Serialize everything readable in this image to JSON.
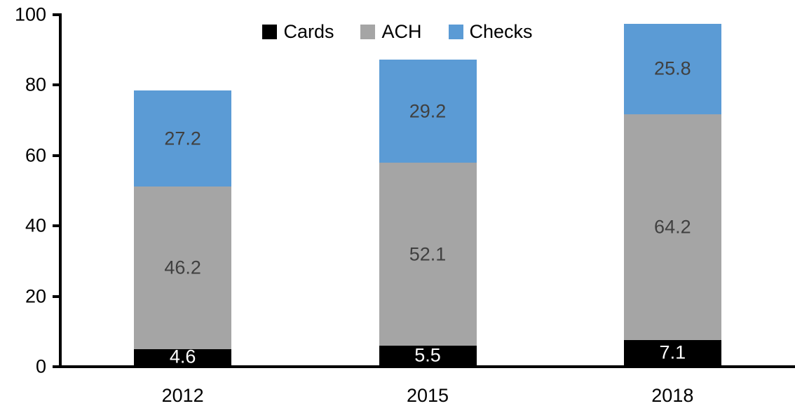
{
  "chart_data": {
    "type": "bar",
    "stacked": true,
    "title": "",
    "xlabel": "",
    "ylabel": "",
    "categories": [
      "2012",
      "2015",
      "2018"
    ],
    "series": [
      {
        "name": "Cards",
        "color": "#000000",
        "label_color": "#ffffff",
        "values": [
          4.6,
          5.5,
          7.1
        ]
      },
      {
        "name": "ACH",
        "color": "#a5a5a5",
        "label_color": "#404040",
        "values": [
          46.2,
          52.1,
          64.2
        ]
      },
      {
        "name": "Checks",
        "color": "#5b9bd5",
        "label_color": "#404040",
        "values": [
          27.2,
          29.2,
          25.8
        ]
      }
    ],
    "totals": [
      78.0,
      86.8,
      97.1
    ],
    "y_axis": {
      "min": 0,
      "max": 100,
      "tick_interval": 20,
      "ticks": [
        0,
        20,
        40,
        60,
        80,
        100
      ]
    },
    "legend": {
      "position": "top",
      "entries": [
        "Cards",
        "ACH",
        "Checks"
      ]
    },
    "grid": false,
    "axis_color": "#000000",
    "background_color": "#ffffff"
  }
}
